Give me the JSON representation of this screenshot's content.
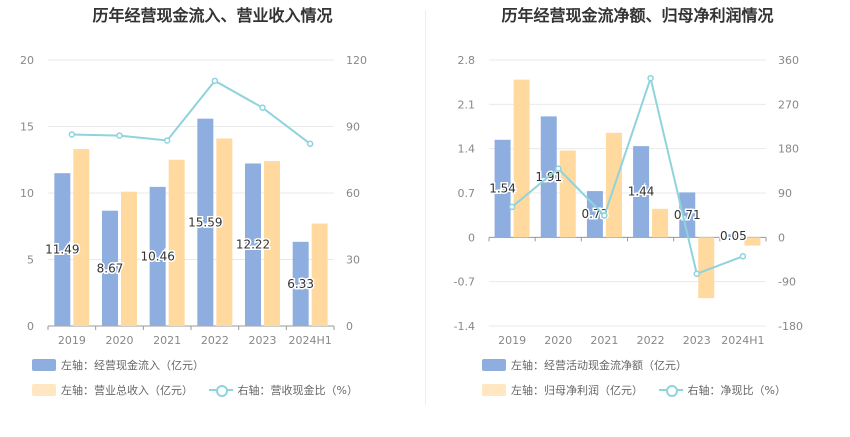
{
  "chart_data": [
    {
      "type": "bar",
      "title": "历年经营现金流入、营业收入情况",
      "categories": [
        "2019",
        "2020",
        "2021",
        "2022",
        "2023",
        "2024H1"
      ],
      "y_left": {
        "lim": [
          0,
          20
        ],
        "ticks": [
          "0",
          "5",
          "10",
          "15",
          "20"
        ]
      },
      "y_right": {
        "lim": [
          0,
          120
        ],
        "ticks": [
          "0",
          "30",
          "60",
          "90",
          "120"
        ]
      },
      "series": [
        {
          "name": "左轴：经营现金流入（亿元）",
          "kind": "bar",
          "axis": "left",
          "color": "#8eaee0",
          "values": [
            11.49,
            8.67,
            10.46,
            15.59,
            12.22,
            6.33
          ],
          "labels": [
            "11.49",
            "8.67",
            "10.46",
            "15.59",
            "12.22",
            "6.33"
          ]
        },
        {
          "name": "左轴：营业总收入（亿元）",
          "kind": "bar",
          "axis": "left",
          "color": "#ffd99e",
          "values": [
            13.3,
            10.1,
            12.5,
            14.1,
            12.4,
            7.7
          ]
        },
        {
          "name": "右轴：营收现金比（%）",
          "kind": "line",
          "axis": "right",
          "color": "#8fd3dc",
          "values": [
            86.4,
            85.9,
            83.7,
            110.6,
            98.5,
            82.2
          ]
        }
      ]
    },
    {
      "type": "bar",
      "title": "历年经营现金流净额、归母净利润情况",
      "categories": [
        "2019",
        "2020",
        "2021",
        "2022",
        "2023",
        "2024H1"
      ],
      "y_left": {
        "lim": [
          -1.4,
          2.8
        ],
        "ticks": [
          "-1.4",
          "-0.7",
          "0",
          "0.7",
          "1.4",
          "2.1",
          "2.8"
        ]
      },
      "y_right": {
        "lim": [
          -180,
          360
        ],
        "ticks": [
          "-180",
          "-90",
          "0",
          "90",
          "180",
          "270",
          "360"
        ]
      },
      "series": [
        {
          "name": "左轴：经营活动现金流净额（亿元）",
          "kind": "bar",
          "axis": "left",
          "color": "#8eaee0",
          "values": [
            1.54,
            1.91,
            0.73,
            1.44,
            0.71,
            0.05
          ],
          "labels": [
            "1.54",
            "1.91",
            "0.73",
            "1.44",
            "0.71",
            "0.05"
          ]
        },
        {
          "name": "左轴：归母净利润（亿元）",
          "kind": "bar",
          "axis": "left",
          "color": "#ffd99e",
          "values": [
            2.49,
            1.37,
            1.65,
            0.45,
            -0.96,
            -0.13
          ]
        },
        {
          "name": "右轴：净现比（%）",
          "kind": "line",
          "axis": "right",
          "color": "#8fd3dc",
          "values": [
            61.8,
            139.4,
            44.2,
            323.0,
            -74.0,
            -38.5
          ]
        }
      ]
    }
  ]
}
